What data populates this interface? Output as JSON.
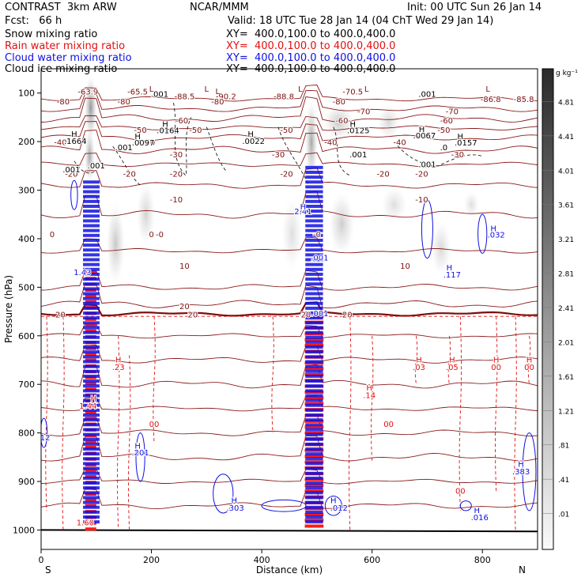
{
  "header": {
    "title_left": "CONTRAST  3km ARW",
    "center": "NCAR/MMM",
    "init": "Init: 00 UTC Sun 26 Jan 14",
    "fcst": "Fcst:   66 h",
    "valid": "Valid: 18 UTC Tue 28 Jan 14 (04 ChT Wed 29 Jan 14)"
  },
  "fields": [
    {
      "name": "Snow mixing ratio",
      "xy": "XY=  400.0,100.0 to 400.0,400.0",
      "color": "#000000"
    },
    {
      "name": "Rain water mixing ratio",
      "xy": "XY=  400.0,100.0 to 400.0,400.0",
      "color": "#e01010"
    },
    {
      "name": "Cloud water mixing ratio",
      "xy": "XY=  400.0,100.0 to 400.0,400.0",
      "color": "#1010e0"
    },
    {
      "name": "Cloud ice mixing ratio",
      "xy": "XY=  400.0,100.0 to 400.0,400.0",
      "color": "#000000"
    }
  ],
  "colorbar": {
    "unit": "g kg⁻¹",
    "labels": [
      "4.81",
      "4.41",
      "4.01",
      "3.61",
      "3.21",
      "2.81",
      "2.41",
      "2.01",
      "1.61",
      "1.21",
      ".81",
      ".41",
      ".01"
    ]
  },
  "chart_data": {
    "type": "heatmap",
    "xlabel": "Distance (km)",
    "ylabel": "Pressure (hPa)",
    "xlim": [
      0,
      900
    ],
    "ylim": [
      1040,
      50
    ],
    "x_ticks": [
      0,
      200,
      400,
      600,
      800
    ],
    "y_ticks": [
      100,
      200,
      300,
      400,
      500,
      600,
      700,
      800,
      900,
      1000
    ],
    "x_end_labels": {
      "left": "S",
      "right": "N"
    },
    "temperature_contours_C": [
      {
        "value": -80,
        "p": 122
      },
      {
        "value": -70,
        "p": 142
      },
      {
        "value": -60,
        "p": 162
      },
      {
        "value": -50,
        "p": 182
      },
      {
        "value": -40,
        "p": 207
      },
      {
        "value": -30,
        "p": 232
      },
      {
        "value": -20,
        "p": 272
      },
      {
        "value": -10,
        "p": 325
      },
      {
        "value": 0,
        "p": 397
      },
      {
        "value": 10,
        "p": 462
      },
      {
        "value": 20,
        "p": 562
      }
    ],
    "temperature_labels": [
      {
        "text": "-63.9",
        "x": 85,
        "p": 103
      },
      {
        "text": "-65.5",
        "x": 175,
        "p": 103
      },
      {
        "text": "-88.5",
        "x": 260,
        "p": 113
      },
      {
        "text": "-90.2",
        "x": 335,
        "p": 113
      },
      {
        "text": "-88.8",
        "x": 440,
        "p": 113
      },
      {
        "text": "-70.5",
        "x": 565,
        "p": 103
      },
      {
        "text": "-86.8",
        "x": 815,
        "p": 118
      },
      {
        "text": "-85.8",
        "x": 875,
        "p": 118
      },
      {
        "text": "-80",
        "x": 40,
        "p": 123
      },
      {
        "text": "-80",
        "x": 150,
        "p": 123
      },
      {
        "text": "-80",
        "x": 320,
        "p": 123
      },
      {
        "text": "-80",
        "x": 540,
        "p": 123
      },
      {
        "text": "-70",
        "x": 745,
        "p": 144
      },
      {
        "text": "-70",
        "x": 585,
        "p": 144
      },
      {
        "text": "-60",
        "x": 255,
        "p": 162
      },
      {
        "text": "-60",
        "x": 545,
        "p": 162
      },
      {
        "text": "-60",
        "x": 735,
        "p": 162
      },
      {
        "text": "-50",
        "x": 180,
        "p": 182
      },
      {
        "text": "-50",
        "x": 280,
        "p": 182
      },
      {
        "text": "-50",
        "x": 445,
        "p": 182
      },
      {
        "text": "-50",
        "x": 730,
        "p": 182
      },
      {
        "text": "-40",
        "x": 35,
        "p": 207
      },
      {
        "text": "-40",
        "x": 195,
        "p": 207
      },
      {
        "text": "-40",
        "x": 525,
        "p": 207
      },
      {
        "text": "-40",
        "x": 650,
        "p": 207
      },
      {
        "text": "-30",
        "x": 245,
        "p": 232
      },
      {
        "text": "-30",
        "x": 430,
        "p": 232
      },
      {
        "text": "-30",
        "x": 755,
        "p": 232
      },
      {
        "text": "-20",
        "x": 55,
        "p": 272
      },
      {
        "text": "-20",
        "x": 160,
        "p": 272
      },
      {
        "text": "-20",
        "x": 245,
        "p": 272
      },
      {
        "text": "-20",
        "x": 445,
        "p": 272
      },
      {
        "text": "-20",
        "x": 620,
        "p": 272
      },
      {
        "text": "-20",
        "x": 690,
        "p": 272
      },
      {
        "text": "-10",
        "x": 245,
        "p": 325
      },
      {
        "text": "-10",
        "x": 690,
        "p": 325
      },
      {
        "text": "0",
        "x": 20,
        "p": 397
      },
      {
        "text": "0",
        "x": 200,
        "p": 397
      },
      {
        "text": "-0",
        "x": 215,
        "p": 397
      },
      {
        "text": "-0",
        "x": 500,
        "p": 397
      },
      {
        "text": "10",
        "x": 260,
        "p": 462
      },
      {
        "text": "10",
        "x": 660,
        "p": 462
      },
      {
        "text": "20",
        "x": 35,
        "p": 562
      },
      {
        "text": "20",
        "x": 275,
        "p": 562
      },
      {
        "text": "20",
        "x": 480,
        "p": 562
      },
      {
        "text": "20",
        "x": 555,
        "p": 562
      },
      {
        "text": "20",
        "x": 260,
        "p": 545
      }
    ],
    "extrema_labels": [
      {
        "text": "H",
        "x": 60,
        "p": 190
      },
      {
        "text": ".1664",
        "x": 62,
        "p": 205
      },
      {
        "text": "H",
        "x": 225,
        "p": 170
      },
      {
        "text": ".0164",
        "x": 230,
        "p": 183
      },
      {
        "text": "H",
        "x": 175,
        "p": 195
      },
      {
        "text": ".0097",
        "x": 185,
        "p": 208
      },
      {
        "text": "H",
        "x": 380,
        "p": 190
      },
      {
        "text": ".0022",
        "x": 385,
        "p": 205
      },
      {
        "text": "H",
        "x": 565,
        "p": 170
      },
      {
        "text": ".0125",
        "x": 575,
        "p": 183
      },
      {
        "text": "H",
        "x": 690,
        "p": 180
      },
      {
        "text": ".0067",
        "x": 695,
        "p": 193
      },
      {
        "text": "H",
        "x": 760,
        "p": 195
      },
      {
        "text": ".0157",
        "x": 770,
        "p": 208
      },
      {
        "text": ".001",
        "x": 150,
        "p": 218
      },
      {
        "text": ".001",
        "x": 215,
        "p": 108
      },
      {
        "text": ".001",
        "x": 575,
        "p": 232
      },
      {
        "text": ".001",
        "x": 700,
        "p": 108
      },
      {
        "text": ".001",
        "x": 700,
        "p": 253
      },
      {
        "text": ".0",
        "x": 730,
        "p": 218
      },
      {
        "text": ".001",
        "x": 55,
        "p": 263
      },
      {
        "text": ".001",
        "x": 100,
        "p": 255
      }
    ],
    "cloud_water_labels": [
      {
        "text": "H",
        "x": 820,
        "p": 385
      },
      {
        "text": ".032",
        "x": 825,
        "p": 398
      },
      {
        "text": "H",
        "x": 740,
        "p": 465
      },
      {
        "text": ".117",
        "x": 745,
        "p": 480
      },
      {
        "text": "H",
        "x": 175,
        "p": 832
      },
      {
        "text": ".201",
        "x": 180,
        "p": 846
      },
      {
        "text": "H",
        "x": 350,
        "p": 945
      },
      {
        "text": ".303",
        "x": 352,
        "p": 960
      },
      {
        "text": "H",
        "x": 530,
        "p": 945
      },
      {
        "text": ".012",
        "x": 540,
        "p": 960
      },
      {
        "text": "H",
        "x": 790,
        "p": 965
      },
      {
        "text": ".016",
        "x": 795,
        "p": 980
      },
      {
        "text": "H",
        "x": 870,
        "p": 870
      },
      {
        "text": ".383",
        "x": 870,
        "p": 885
      },
      {
        "text": "1.43",
        "x": 75,
        "p": 475
      },
      {
        "text": "2.41",
        "x": 475,
        "p": 350
      },
      {
        "text": "H",
        "x": 475,
        "p": 340
      },
      {
        "text": ".001",
        "x": 505,
        "p": 445
      },
      {
        "text": ".001",
        "x": 505,
        "p": 560
      },
      {
        "text": ".12",
        "x": 5,
        "p": 815
      }
    ],
    "rain_labels": [
      {
        "text": "H",
        "x": 140,
        "p": 655
      },
      {
        "text": ".23",
        "x": 140,
        "p": 670
      },
      {
        "text": "H",
        "x": 685,
        "p": 655
      },
      {
        "text": ".03",
        "x": 685,
        "p": 670
      },
      {
        "text": "H",
        "x": 745,
        "p": 655
      },
      {
        "text": ".05",
        "x": 745,
        "p": 670
      },
      {
        "text": "H",
        "x": 825,
        "p": 655
      },
      {
        "text": "00",
        "x": 825,
        "p": 670
      },
      {
        "text": "H",
        "x": 885,
        "p": 655
      },
      {
        "text": "00",
        "x": 885,
        "p": 670
      },
      {
        "text": "H",
        "x": 595,
        "p": 713
      },
      {
        "text": ".14",
        "x": 595,
        "p": 728
      },
      {
        "text": "00",
        "x": 205,
        "p": 788
      },
      {
        "text": "00",
        "x": 630,
        "p": 788
      },
      {
        "text": "00",
        "x": 760,
        "p": 925
      },
      {
        "text": "1.60",
        "x": 80,
        "p": 990
      },
      {
        "text": "H",
        "x": 95,
        "p": 735
      },
      {
        "text": "1.44",
        "x": 85,
        "p": 750
      }
    ]
  }
}
